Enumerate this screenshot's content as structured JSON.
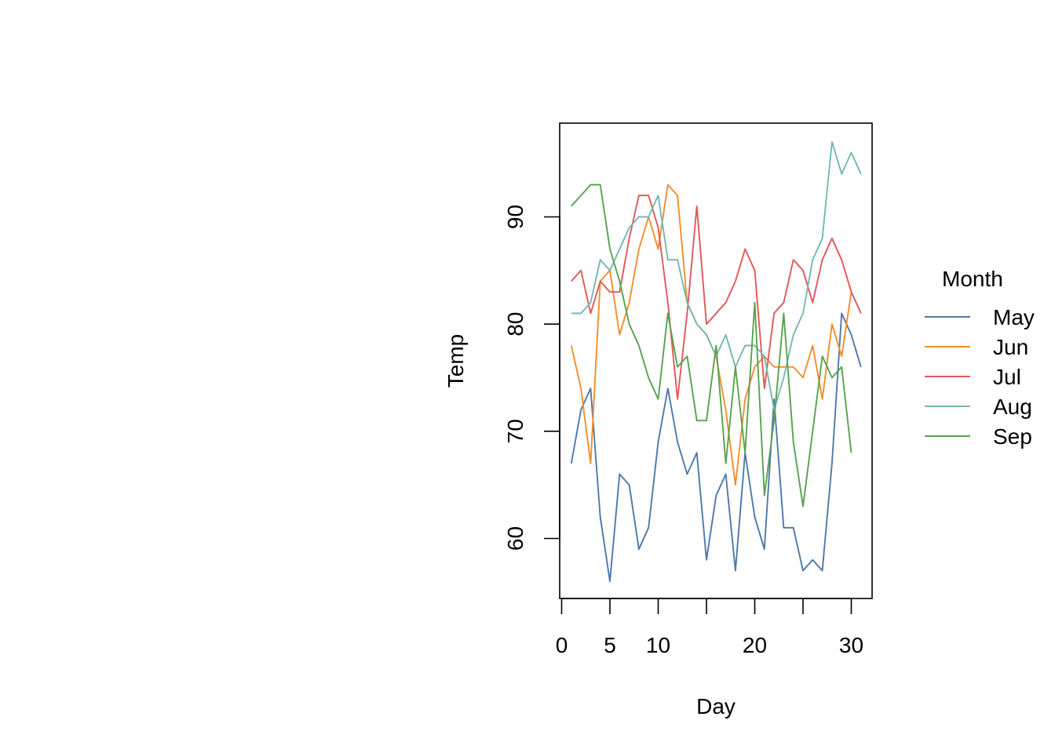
{
  "chart_data": {
    "type": "line",
    "xlabel": "Day",
    "ylabel": "Temp",
    "xlim": [
      0,
      31
    ],
    "ylim": [
      54.5,
      98.8
    ],
    "x_ticks": [
      0,
      5,
      10,
      15,
      20,
      25,
      30
    ],
    "x_tick_labels": [
      "0",
      "5",
      "10",
      "",
      "20",
      "",
      "30"
    ],
    "y_ticks": [
      60,
      70,
      80,
      90
    ],
    "y_tick_labels": [
      "60",
      "70",
      "80",
      "90"
    ],
    "grid": false,
    "legend": {
      "title": "Month",
      "placement": "right"
    },
    "series": [
      {
        "name": "May",
        "color": "#4e79a7",
        "x": [
          1,
          2,
          3,
          4,
          5,
          6,
          7,
          8,
          9,
          10,
          11,
          12,
          13,
          14,
          15,
          16,
          17,
          18,
          19,
          20,
          21,
          22,
          23,
          24,
          25,
          26,
          27,
          28,
          29,
          30,
          31
        ],
        "values": [
          67,
          72,
          74,
          62,
          56,
          66,
          65,
          59,
          61,
          69,
          74,
          69,
          66,
          68,
          58,
          64,
          66,
          57,
          68,
          62,
          59,
          73,
          61,
          61,
          57,
          58,
          57,
          67,
          81,
          79,
          76
        ]
      },
      {
        "name": "Jun",
        "color": "#f28e2b",
        "x": [
          1,
          2,
          3,
          4,
          5,
          6,
          7,
          8,
          9,
          10,
          11,
          12,
          13,
          14,
          15,
          16,
          17,
          18,
          19,
          20,
          21,
          22,
          23,
          24,
          25,
          26,
          27,
          28,
          29,
          30
        ],
        "values": [
          78,
          74,
          67,
          84,
          85,
          79,
          82,
          87,
          90,
          87,
          93,
          92,
          82,
          80,
          79,
          77,
          72,
          65,
          73,
          76,
          77,
          76,
          76,
          76,
          75,
          78,
          73,
          80,
          77,
          83
        ]
      },
      {
        "name": "Jul",
        "color": "#e15759",
        "x": [
          1,
          2,
          3,
          4,
          5,
          6,
          7,
          8,
          9,
          10,
          11,
          12,
          13,
          14,
          15,
          16,
          17,
          18,
          19,
          20,
          21,
          22,
          23,
          24,
          25,
          26,
          27,
          28,
          29,
          30,
          31
        ],
        "values": [
          84,
          85,
          81,
          84,
          83,
          83,
          88,
          92,
          92,
          89,
          82,
          73,
          81,
          91,
          80,
          81,
          82,
          84,
          87,
          85,
          74,
          81,
          82,
          86,
          85,
          82,
          86,
          88,
          86,
          83,
          81
        ]
      },
      {
        "name": "Aug",
        "color": "#76b7b2",
        "x": [
          1,
          2,
          3,
          4,
          5,
          6,
          7,
          8,
          9,
          10,
          11,
          12,
          13,
          14,
          15,
          16,
          17,
          18,
          19,
          20,
          21,
          22,
          23,
          24,
          25,
          26,
          27,
          28,
          29,
          30,
          31
        ],
        "values": [
          81,
          81,
          82,
          86,
          85,
          87,
          89,
          90,
          90,
          92,
          86,
          86,
          82,
          80,
          79,
          77,
          79,
          76,
          78,
          78,
          77,
          72,
          75,
          79,
          81,
          86,
          88,
          97,
          94,
          96,
          94
        ]
      },
      {
        "name": "Sep",
        "color": "#59a14f",
        "x": [
          1,
          2,
          3,
          4,
          5,
          6,
          7,
          8,
          9,
          10,
          11,
          12,
          13,
          14,
          15,
          16,
          17,
          18,
          19,
          20,
          21,
          22,
          23,
          24,
          25,
          26,
          27,
          28,
          29,
          30
        ],
        "values": [
          91,
          92,
          93,
          93,
          87,
          84,
          80,
          78,
          75,
          73,
          81,
          76,
          77,
          71,
          71,
          78,
          67,
          76,
          68,
          82,
          64,
          71,
          81,
          69,
          63,
          70,
          77,
          75,
          76,
          68
        ]
      }
    ]
  }
}
